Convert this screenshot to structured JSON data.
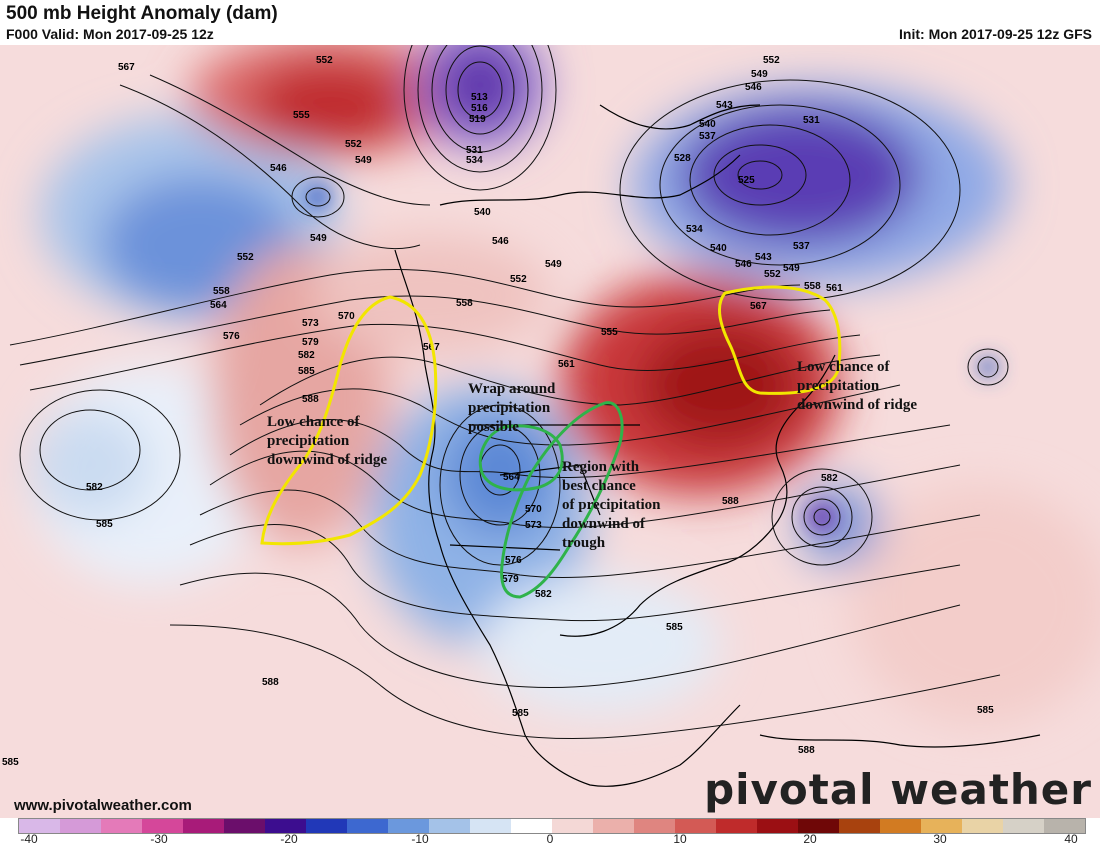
{
  "header": {
    "title": "500 mb Height Anomaly (dam)",
    "valid": "F000 Valid: Mon 2017-09-25 12z",
    "init": "Init: Mon 2017-09-25 12z GFS"
  },
  "annotations": {
    "west_ridge": "Low chance of\nprecipitation\ndownwind of ridge",
    "wrap_around": "Wrap around\nprecipitation\npossible",
    "best_region": "Region with\nbest chance\nof precipitation\ndownwind of\ntrough",
    "east_ridge": "Low chance of\nprecipitation\ndownwind of ridge"
  },
  "contour_labels": [
    "567",
    "552",
    "555",
    "552",
    "549",
    "546",
    "549",
    "552",
    "558",
    "564",
    "570",
    "573",
    "576",
    "579",
    "582",
    "585",
    "588",
    "513",
    "516",
    "519",
    "531",
    "534",
    "540",
    "546",
    "549",
    "552",
    "558",
    "555",
    "561",
    "564",
    "567",
    "570",
    "573",
    "576",
    "579",
    "582",
    "585",
    "588",
    "552",
    "549",
    "546",
    "543",
    "540",
    "537",
    "534",
    "531",
    "528",
    "525",
    "537",
    "540",
    "543",
    "546",
    "549",
    "552",
    "558",
    "561",
    "567",
    "582",
    "585",
    "588",
    "588",
    "585",
    "585",
    "585",
    "582"
  ],
  "colorbar": {
    "ticks": [
      "-40",
      "-30",
      "-20",
      "-10",
      "0",
      "10",
      "20",
      "30",
      "40"
    ],
    "colors": [
      "#d9b8e8",
      "#d59ad8",
      "#e47ab9",
      "#d5479a",
      "#a81b79",
      "#6b0e6b",
      "#3c0d8f",
      "#2138b8",
      "#3d68d0",
      "#6b98dd",
      "#a4c2e8",
      "#d6e4f4",
      "#ffffff",
      "#f4d8d6",
      "#ebb0ab",
      "#df8580",
      "#d35a55",
      "#bf2b2b",
      "#9b0f13",
      "#6f0707",
      "#a8420e",
      "#d27b22",
      "#e7b25a",
      "#e9d3a6",
      "#d6d1c7",
      "#b8b3ab"
    ]
  },
  "watermark": "www.pivotalweather.com",
  "brand": "pivotal weather",
  "colors": {
    "ridge": "#c8373a",
    "trough": "#3f72c9",
    "low_purple": "#5a2ea8",
    "yellow_outline": "#f2e600",
    "green_outline": "#2fb34a"
  }
}
